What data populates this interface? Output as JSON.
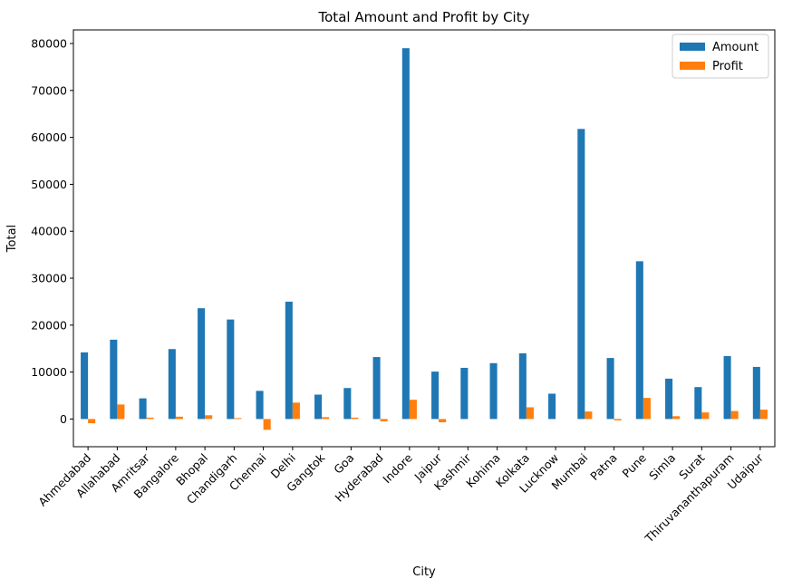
{
  "chart_data": {
    "type": "bar",
    "title": "Total Amount and Profit by City",
    "xlabel": "City",
    "ylabel": "Total",
    "ylim": [
      -5900,
      82900
    ],
    "yticks": [
      0,
      10000,
      20000,
      30000,
      40000,
      50000,
      60000,
      70000,
      80000
    ],
    "legend_position": "top-right",
    "grid": false,
    "categories": [
      "Ahmedabad",
      "Allahabad",
      "Amritsar",
      "Bangalore",
      "Bhopal",
      "Chandigarh",
      "Chennai",
      "Delhi",
      "Gangtok",
      "Goa",
      "Hyderabad",
      "Indore",
      "Jaipur",
      "Kashmir",
      "Kohima",
      "Kolkata",
      "Lucknow",
      "Mumbai",
      "Patna",
      "Pune",
      "Simla",
      "Surat",
      "Thiruvananthapuram",
      "Udaipur"
    ],
    "series": [
      {
        "name": "Amount",
        "color": "#1f77b4",
        "values": [
          14200,
          16900,
          4400,
          14900,
          23600,
          21200,
          6000,
          25000,
          5200,
          6600,
          13200,
          79000,
          10100,
          10900,
          11900,
          14000,
          5400,
          61800,
          13000,
          33600,
          8600,
          6800,
          13400,
          11100
        ]
      },
      {
        "name": "Profit",
        "color": "#ff7f0e",
        "values": [
          -900,
          3100,
          300,
          500,
          800,
          200,
          -2300,
          3500,
          400,
          300,
          -500,
          4100,
          -700,
          0,
          0,
          2500,
          0,
          1600,
          -300,
          4500,
          600,
          1400,
          1700,
          2000
        ]
      }
    ]
  }
}
